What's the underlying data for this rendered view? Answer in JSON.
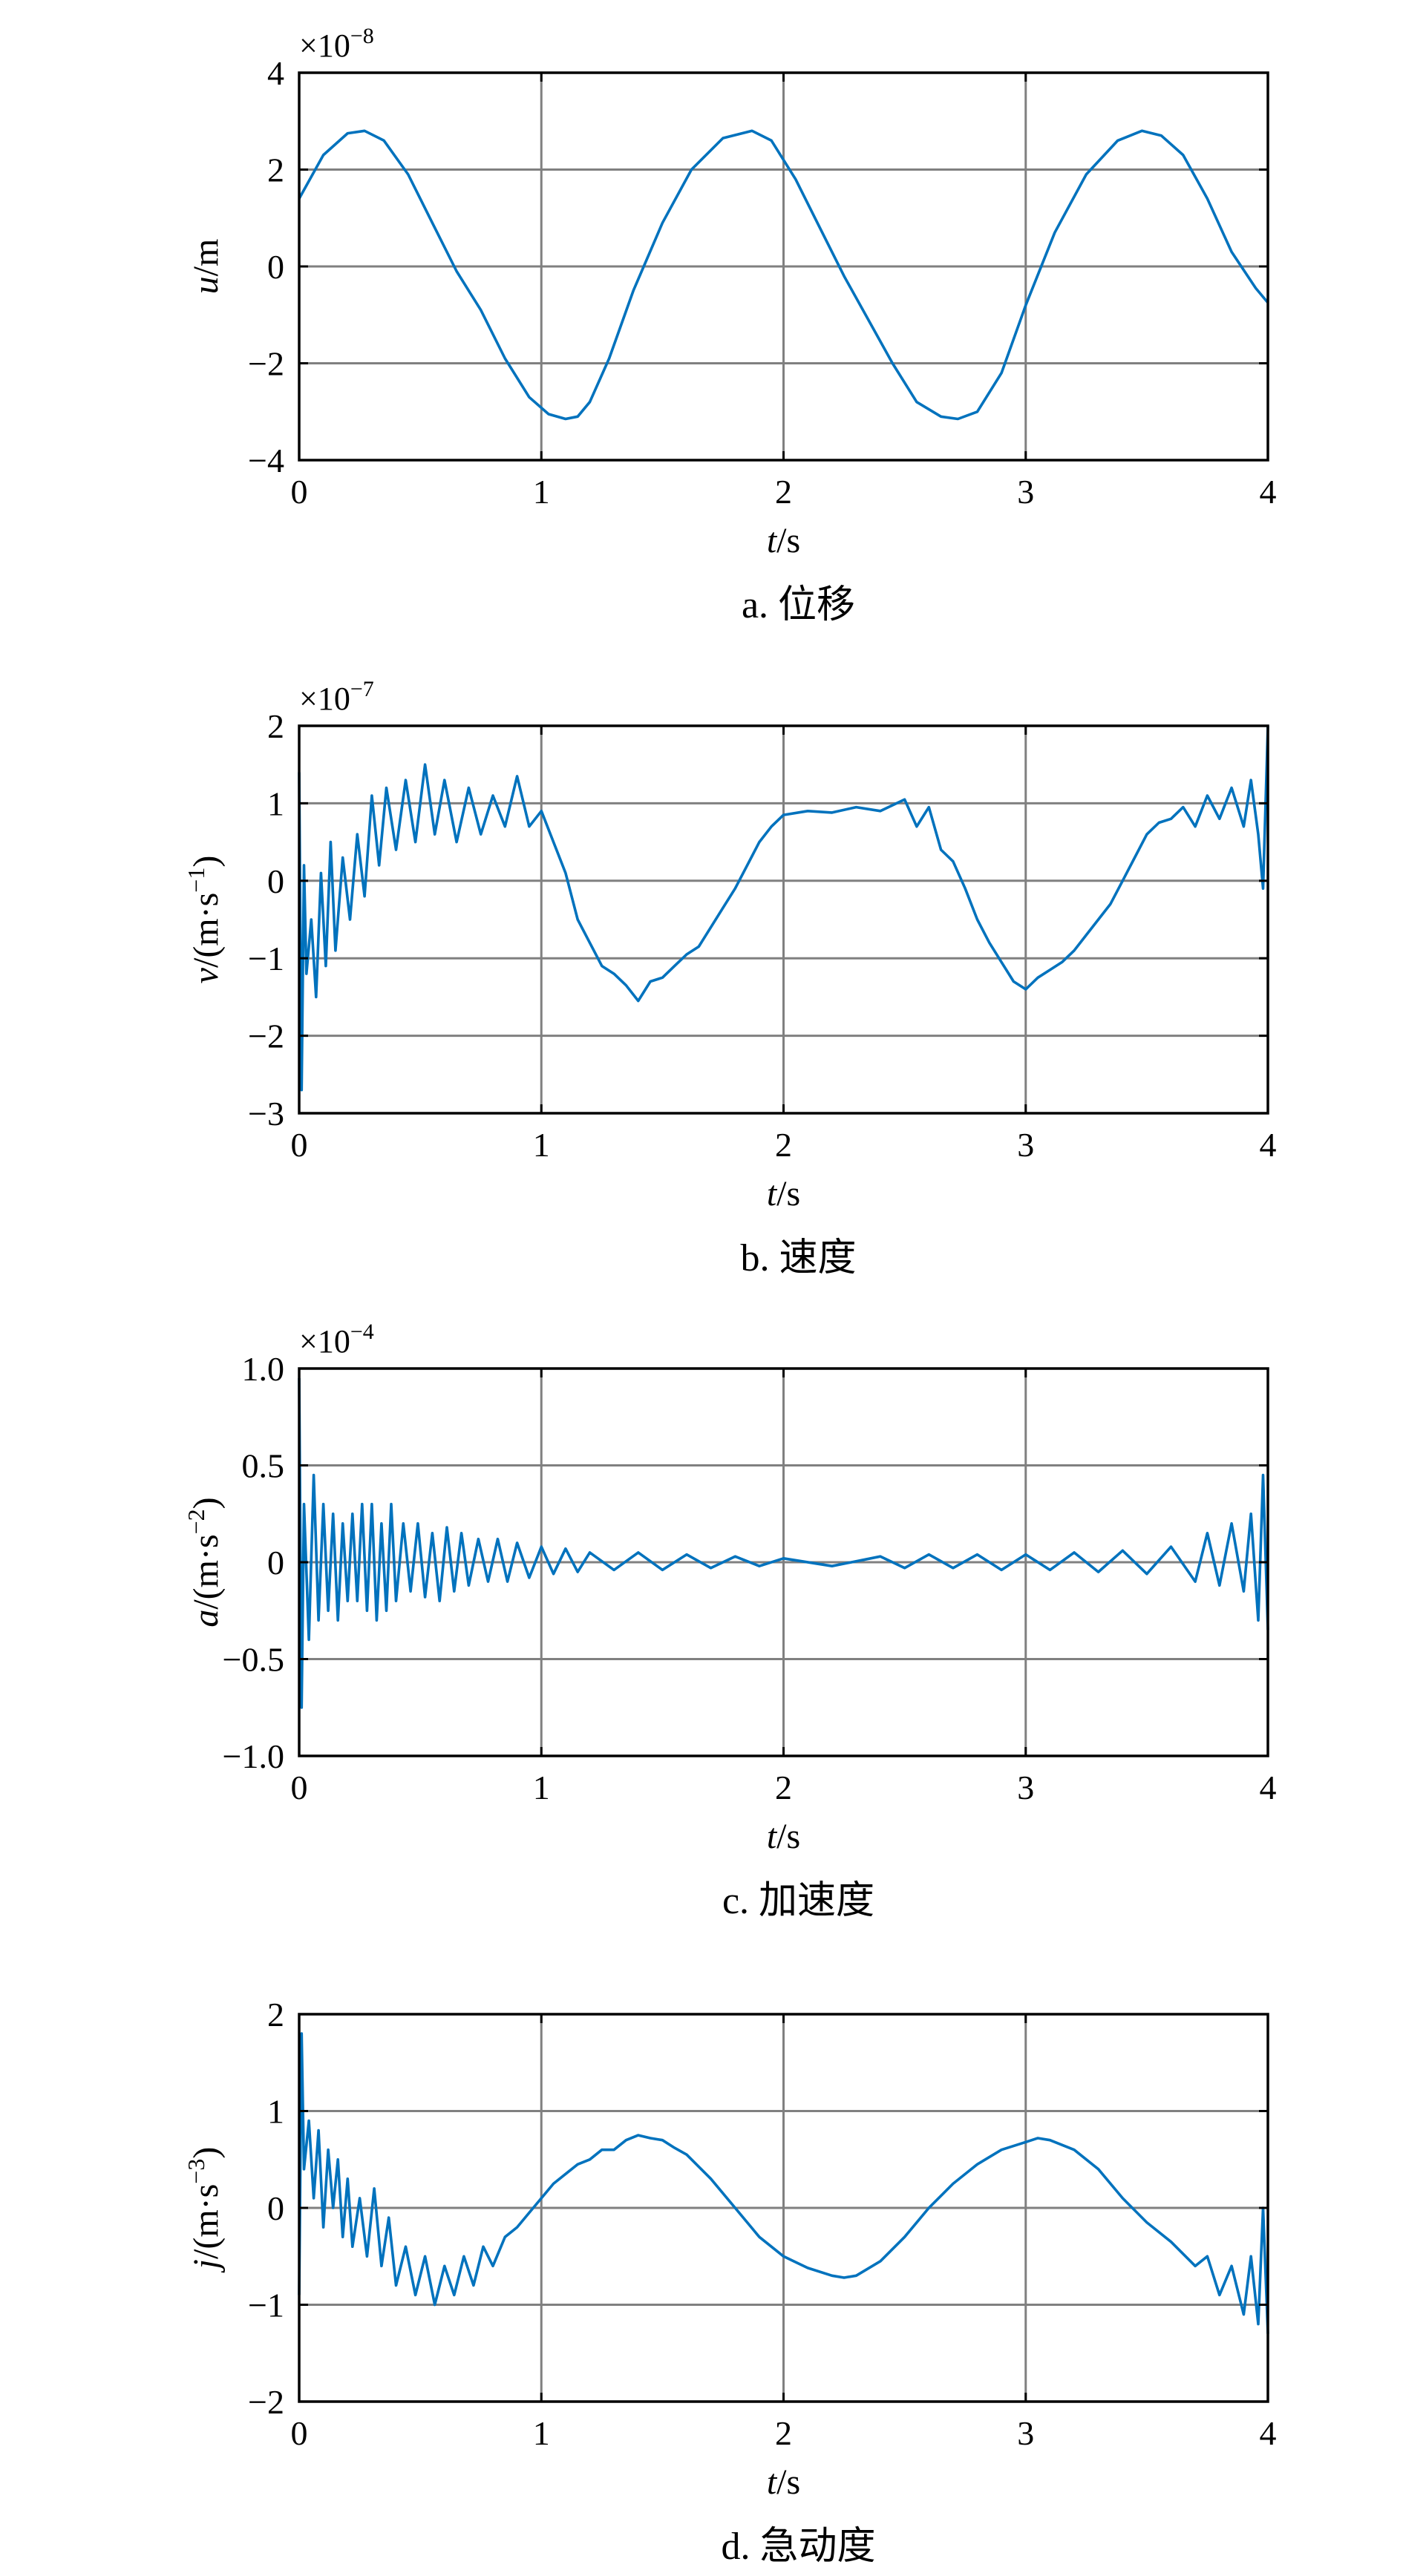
{
  "chart_data": [
    {
      "id": "a",
      "type": "line",
      "caption": "a. 位移",
      "ylabel_var": "u",
      "ylabel_unit": "/m",
      "ylabel_exp": "",
      "ylabel_close": "",
      "xlabel_var": "t",
      "xlabel_unit": "/s",
      "multiplier_base": "×10",
      "multiplier_exp": "−8",
      "xlim": [
        0,
        4
      ],
      "ylim": [
        -4,
        4
      ],
      "xticks": [
        0,
        1,
        2,
        3,
        4
      ],
      "xtick_labels": [
        "0",
        "1",
        "2",
        "3",
        "4"
      ],
      "yticks": [
        4,
        2,
        0,
        -2,
        -4
      ],
      "ytick_labels": [
        "4",
        "2",
        "0",
        "−2",
        "−4"
      ],
      "grid": true,
      "color": "#0072bd",
      "series": [
        {
          "x": [
            0,
            0.1,
            0.2,
            0.27,
            0.35,
            0.45,
            0.55,
            0.65,
            0.75,
            0.85,
            0.95,
            1.03,
            1.1,
            1.15,
            1.2,
            1.28,
            1.38,
            1.5,
            1.62,
            1.75,
            1.87,
            1.95,
            2.05,
            2.15,
            2.25,
            2.35,
            2.45,
            2.55,
            2.65,
            2.72,
            2.8,
            2.9,
            3.0,
            3.12,
            3.25,
            3.38,
            3.48,
            3.56,
            3.65,
            3.75,
            3.85,
            3.95,
            4.0
          ],
          "y": [
            1.4,
            2.3,
            2.75,
            2.8,
            2.6,
            1.9,
            0.9,
            -0.1,
            -0.9,
            -1.9,
            -2.7,
            -3.05,
            -3.15,
            -3.1,
            -2.8,
            -1.9,
            -0.5,
            0.9,
            2.0,
            2.65,
            2.8,
            2.6,
            1.8,
            0.8,
            -0.2,
            -1.1,
            -2.0,
            -2.8,
            -3.1,
            -3.15,
            -3.0,
            -2.2,
            -0.8,
            0.7,
            1.9,
            2.6,
            2.8,
            2.7,
            2.3,
            1.4,
            0.3,
            -0.45,
            -0.75
          ]
        }
      ]
    },
    {
      "id": "b",
      "type": "line",
      "caption": "b. 速度",
      "ylabel_var": "v",
      "ylabel_unit": "/(m·s",
      "ylabel_exp": "−1",
      "ylabel_close": ")",
      "xlabel_var": "t",
      "xlabel_unit": "/s",
      "multiplier_base": "×10",
      "multiplier_exp": "−7",
      "xlim": [
        0,
        4
      ],
      "ylim": [
        -3,
        2
      ],
      "xticks": [
        0,
        1,
        2,
        3,
        4
      ],
      "xtick_labels": [
        "0",
        "1",
        "2",
        "3",
        "4"
      ],
      "yticks": [
        2,
        1,
        0,
        -1,
        -2,
        -3
      ],
      "ytick_labels": [
        "2",
        "1",
        "0",
        "−1",
        "−2",
        "−3"
      ],
      "grid": true,
      "color": "#0072bd",
      "series": [
        {
          "x": [
            0,
            0.01,
            0.02,
            0.03,
            0.05,
            0.07,
            0.09,
            0.11,
            0.13,
            0.15,
            0.18,
            0.21,
            0.24,
            0.27,
            0.3,
            0.33,
            0.36,
            0.4,
            0.44,
            0.48,
            0.52,
            0.56,
            0.6,
            0.65,
            0.7,
            0.75,
            0.8,
            0.85,
            0.9,
            0.95,
            1.0,
            1.05,
            1.1,
            1.15,
            1.2,
            1.25,
            1.3,
            1.35,
            1.4,
            1.45,
            1.5,
            1.55,
            1.6,
            1.65,
            1.7,
            1.75,
            1.8,
            1.85,
            1.9,
            1.95,
            2.0,
            2.1,
            2.2,
            2.3,
            2.4,
            2.5,
            2.55,
            2.6,
            2.65,
            2.7,
            2.75,
            2.8,
            2.85,
            2.9,
            2.95,
            3.0,
            3.05,
            3.1,
            3.15,
            3.2,
            3.25,
            3.3,
            3.35,
            3.4,
            3.45,
            3.5,
            3.55,
            3.6,
            3.65,
            3.7,
            3.75,
            3.8,
            3.85,
            3.9,
            3.93,
            3.96,
            3.98,
            4.0
          ],
          "y": [
            1.4,
            -2.7,
            0.2,
            -1.2,
            -0.5,
            -1.5,
            0.1,
            -1.1,
            0.5,
            -0.9,
            0.3,
            -0.5,
            0.6,
            -0.2,
            1.1,
            0.2,
            1.2,
            0.4,
            1.3,
            0.5,
            1.5,
            0.6,
            1.3,
            0.5,
            1.2,
            0.6,
            1.1,
            0.7,
            1.35,
            0.7,
            0.9,
            0.5,
            0.1,
            -0.5,
            -0.8,
            -1.1,
            -1.2,
            -1.35,
            -1.55,
            -1.3,
            -1.25,
            -1.1,
            -0.95,
            -0.85,
            -0.6,
            -0.35,
            -0.1,
            0.2,
            0.5,
            0.7,
            0.85,
            0.9,
            0.88,
            0.95,
            0.9,
            1.05,
            0.7,
            0.95,
            0.4,
            0.25,
            -0.1,
            -0.5,
            -0.8,
            -1.05,
            -1.3,
            -1.4,
            -1.25,
            -1.15,
            -1.05,
            -0.9,
            -0.7,
            -0.5,
            -0.3,
            0.0,
            0.3,
            0.6,
            0.75,
            0.8,
            0.95,
            0.7,
            1.1,
            0.8,
            1.2,
            0.7,
            1.3,
            0.6,
            -0.1,
            2.0
          ]
        }
      ]
    },
    {
      "id": "c",
      "type": "line",
      "caption": "c. 加速度",
      "ylabel_var": "a",
      "ylabel_unit": "/(m·s",
      "ylabel_exp": "−2",
      "ylabel_close": ")",
      "xlabel_var": "t",
      "xlabel_unit": "/s",
      "multiplier_base": "×10",
      "multiplier_exp": "−4",
      "xlim": [
        0,
        4
      ],
      "ylim": [
        -1.0,
        1.0
      ],
      "xticks": [
        0,
        1,
        2,
        3,
        4
      ],
      "xtick_labels": [
        "0",
        "1",
        "2",
        "3",
        "4"
      ],
      "yticks": [
        1.0,
        0.5,
        0,
        -0.5,
        -1.0
      ],
      "ytick_labels": [
        "1.0",
        "0.5",
        "0",
        "−0.5",
        "−1.0"
      ],
      "grid": true,
      "color": "#0072bd",
      "series": [
        {
          "x": [
            0,
            0.01,
            0.02,
            0.04,
            0.06,
            0.08,
            0.1,
            0.12,
            0.14,
            0.16,
            0.18,
            0.2,
            0.22,
            0.24,
            0.26,
            0.28,
            0.3,
            0.32,
            0.34,
            0.36,
            0.38,
            0.4,
            0.43,
            0.46,
            0.49,
            0.52,
            0.55,
            0.58,
            0.61,
            0.64,
            0.67,
            0.7,
            0.74,
            0.78,
            0.82,
            0.86,
            0.9,
            0.95,
            1.0,
            1.05,
            1.1,
            1.15,
            1.2,
            1.3,
            1.4,
            1.5,
            1.6,
            1.7,
            1.8,
            1.9,
            2.0,
            2.2,
            2.4,
            2.5,
            2.6,
            2.7,
            2.8,
            2.9,
            3.0,
            3.1,
            3.2,
            3.3,
            3.4,
            3.5,
            3.6,
            3.7,
            3.75,
            3.8,
            3.85,
            3.9,
            3.93,
            3.96,
            3.98,
            4.0
          ],
          "y": [
            0.95,
            -0.75,
            0.3,
            -0.4,
            0.45,
            -0.3,
            0.3,
            -0.25,
            0.25,
            -0.3,
            0.2,
            -0.2,
            0.25,
            -0.2,
            0.3,
            -0.25,
            0.3,
            -0.3,
            0.2,
            -0.25,
            0.3,
            -0.2,
            0.2,
            -0.15,
            0.2,
            -0.18,
            0.15,
            -0.2,
            0.18,
            -0.15,
            0.15,
            -0.12,
            0.12,
            -0.1,
            0.12,
            -0.1,
            0.1,
            -0.08,
            0.08,
            -0.06,
            0.07,
            -0.05,
            0.05,
            -0.04,
            0.05,
            -0.04,
            0.04,
            -0.03,
            0.03,
            -0.02,
            0.02,
            -0.02,
            0.03,
            -0.03,
            0.04,
            -0.03,
            0.04,
            -0.04,
            0.04,
            -0.04,
            0.05,
            -0.05,
            0.06,
            -0.06,
            0.08,
            -0.1,
            0.15,
            -0.12,
            0.2,
            -0.15,
            0.25,
            -0.3,
            0.45,
            -0.35
          ]
        }
      ]
    },
    {
      "id": "d",
      "type": "line",
      "caption": "d. 急动度",
      "ylabel_var": "j",
      "ylabel_unit": "/(m·s",
      "ylabel_exp": "−3",
      "ylabel_close": ")",
      "xlabel_var": "t",
      "xlabel_unit": "/s",
      "multiplier_base": "",
      "multiplier_exp": "",
      "xlim": [
        0,
        4
      ],
      "ylim": [
        -2,
        2
      ],
      "xticks": [
        0,
        1,
        2,
        3,
        4
      ],
      "xtick_labels": [
        "0",
        "1",
        "2",
        "3",
        "4"
      ],
      "yticks": [
        2,
        1,
        0,
        -1,
        -2
      ],
      "ytick_labels": [
        "2",
        "1",
        "0",
        "−1",
        "−2"
      ],
      "grid": true,
      "color": "#0072bd",
      "series": [
        {
          "x": [
            0,
            0.01,
            0.02,
            0.04,
            0.06,
            0.08,
            0.1,
            0.12,
            0.14,
            0.16,
            0.18,
            0.2,
            0.22,
            0.25,
            0.28,
            0.31,
            0.34,
            0.37,
            0.4,
            0.44,
            0.48,
            0.52,
            0.56,
            0.6,
            0.64,
            0.68,
            0.72,
            0.76,
            0.8,
            0.85,
            0.9,
            0.95,
            1.0,
            1.05,
            1.1,
            1.15,
            1.2,
            1.25,
            1.3,
            1.35,
            1.4,
            1.45,
            1.5,
            1.55,
            1.6,
            1.7,
            1.8,
            1.9,
            2.0,
            2.1,
            2.2,
            2.25,
            2.3,
            2.4,
            2.5,
            2.6,
            2.7,
            2.8,
            2.9,
            3.0,
            3.05,
            3.1,
            3.15,
            3.2,
            3.3,
            3.4,
            3.5,
            3.6,
            3.7,
            3.75,
            3.8,
            3.85,
            3.9,
            3.93,
            3.96,
            3.98,
            4.0
          ],
          "y": [
            -0.9,
            1.8,
            0.4,
            0.9,
            0.1,
            0.8,
            -0.2,
            0.6,
            0.0,
            0.5,
            -0.3,
            0.3,
            -0.4,
            0.1,
            -0.5,
            0.2,
            -0.6,
            -0.1,
            -0.8,
            -0.4,
            -0.9,
            -0.5,
            -1.0,
            -0.6,
            -0.9,
            -0.5,
            -0.8,
            -0.4,
            -0.6,
            -0.3,
            -0.2,
            -0.05,
            0.1,
            0.25,
            0.35,
            0.45,
            0.5,
            0.6,
            0.6,
            0.7,
            0.75,
            0.72,
            0.7,
            0.62,
            0.55,
            0.3,
            0.0,
            -0.3,
            -0.5,
            -0.62,
            -0.7,
            -0.72,
            -0.7,
            -0.55,
            -0.3,
            0.0,
            0.25,
            0.45,
            0.6,
            0.68,
            0.72,
            0.7,
            0.65,
            0.6,
            0.4,
            0.1,
            -0.15,
            -0.35,
            -0.6,
            -0.5,
            -0.9,
            -0.6,
            -1.1,
            -0.5,
            -1.2,
            0.0,
            -1.3
          ]
        }
      ]
    }
  ]
}
